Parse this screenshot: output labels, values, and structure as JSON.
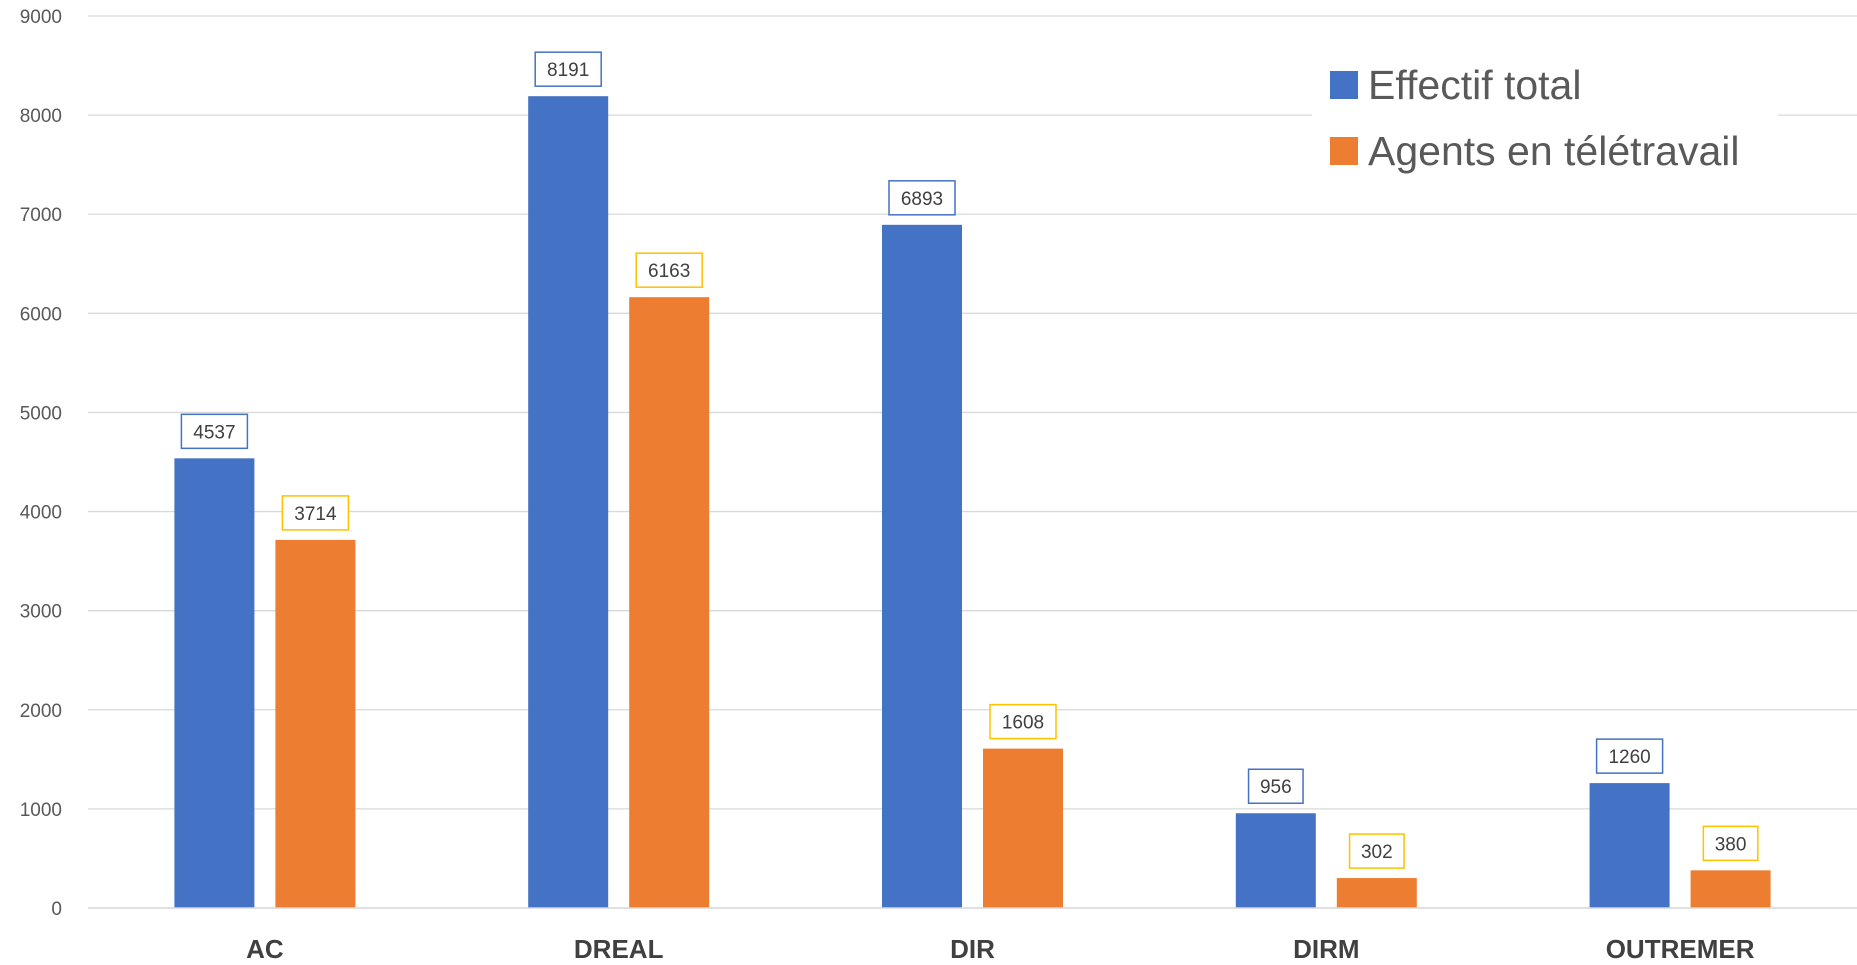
{
  "chart_data": {
    "type": "bar",
    "categories": [
      "AC",
      "DREAL",
      "DIR",
      "DIRM",
      "OUTREMER"
    ],
    "series": [
      {
        "name": "Effectif total",
        "color": "#4472C4",
        "label_border": "#4472C4",
        "values": [
          4537,
          8191,
          6893,
          956,
          1260
        ]
      },
      {
        "name": "Agents en télétravail",
        "color": "#ED7D31",
        "label_border": "#FFC000",
        "values": [
          3714,
          6163,
          1608,
          302,
          380
        ]
      }
    ],
    "ylim": [
      0,
      9000
    ],
    "yticks": [
      0,
      1000,
      2000,
      3000,
      4000,
      5000,
      6000,
      7000,
      8000,
      9000
    ],
    "grid": true,
    "gridline_color": "#D9D9D9",
    "legend_position": "top-right",
    "data_labels": true
  }
}
